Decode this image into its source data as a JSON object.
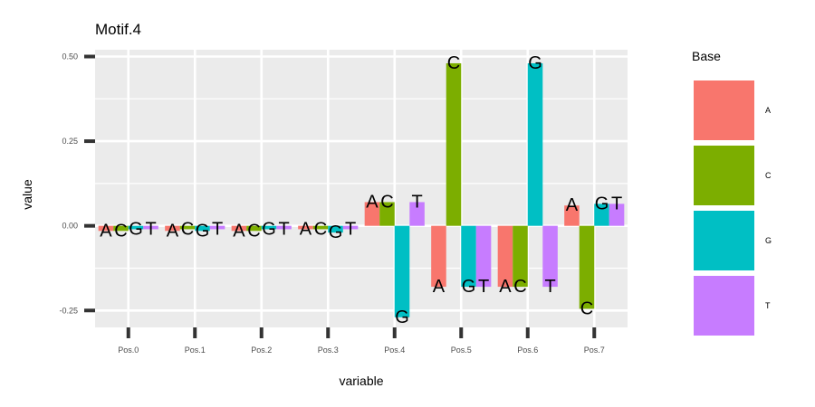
{
  "chart_data": {
    "type": "bar",
    "title": "Motif.4",
    "xlabel": "variable",
    "ylabel": "value",
    "categories": [
      "Pos.0",
      "Pos.1",
      "Pos.2",
      "Pos.3",
      "Pos.4",
      "Pos.5",
      "Pos.6",
      "Pos.7"
    ],
    "ylim": [
      -0.3,
      0.52
    ],
    "yticks": [
      0.5,
      0.25,
      0.0,
      -0.25
    ],
    "ytick_labels": [
      "0.50",
      "0.25",
      "0.00",
      "-0.25"
    ],
    "grid": true,
    "legend": {
      "title": "Base",
      "position": "right"
    },
    "series": [
      {
        "name": "A",
        "color": "#F8766D",
        "values": [
          -0.015,
          -0.015,
          -0.015,
          -0.01,
          0.07,
          -0.18,
          -0.18,
          0.06
        ]
      },
      {
        "name": "C",
        "color": "#7CAE00",
        "values": [
          -0.015,
          -0.01,
          -0.015,
          -0.01,
          0.07,
          0.48,
          -0.18,
          -0.245
        ]
      },
      {
        "name": "G",
        "color": "#00BFC4",
        "values": [
          -0.01,
          -0.015,
          -0.01,
          -0.02,
          -0.27,
          -0.18,
          0.48,
          0.065
        ]
      },
      {
        "name": "T",
        "color": "#C77CFF",
        "values": [
          -0.01,
          -0.01,
          -0.01,
          -0.01,
          0.07,
          -0.18,
          -0.18,
          0.065
        ]
      }
    ],
    "bar_labels": [
      [
        "A",
        "C",
        "G",
        "T"
      ],
      [
        "A",
        "C",
        "G",
        "T"
      ],
      [
        "A",
        "C",
        "G",
        "T"
      ],
      [
        "A",
        "C",
        "G",
        "T"
      ],
      [
        "A",
        "C",
        "G",
        "T"
      ],
      [
        "A",
        "C",
        "G",
        "T"
      ],
      [
        "A",
        "C",
        "G",
        "T"
      ],
      [
        "A",
        "C",
        "G",
        "T"
      ]
    ]
  }
}
